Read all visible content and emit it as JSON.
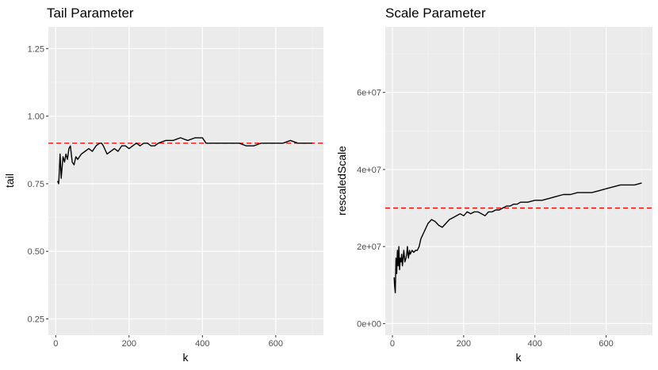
{
  "colors": {
    "panel_bg": "#ebebeb",
    "grid_major": "#ffffff",
    "grid_minor": "#f5f5f5",
    "line": "#000000",
    "ref_line": "#ff0000",
    "tick_text": "#4d4d4d"
  },
  "chart_data": [
    {
      "type": "line",
      "title": "Tail Parameter",
      "xlabel": "k",
      "ylabel": "tail",
      "xlim": [
        -20,
        730
      ],
      "ylim": [
        0.19,
        1.33
      ],
      "x_ticks": [
        0,
        200,
        400,
        600
      ],
      "x_tick_labels": [
        "0",
        "200",
        "400",
        "600"
      ],
      "y_ticks": [
        0.25,
        0.5,
        0.75,
        1.0,
        1.25
      ],
      "y_tick_labels": [
        "0.25",
        "0.50",
        "0.75",
        "1.00",
        "1.25"
      ],
      "reference_line": {
        "y": 0.9,
        "style": "dashed",
        "color": "#ff0000"
      },
      "grid": true,
      "series": [
        {
          "x": [
            5,
            8,
            10,
            12,
            15,
            18,
            20,
            24,
            28,
            32,
            36,
            40,
            45,
            50,
            55,
            60,
            65,
            70,
            80,
            90,
            100,
            110,
            120,
            125,
            130,
            140,
            150,
            160,
            170,
            180,
            190,
            200,
            210,
            220,
            230,
            240,
            250,
            260,
            270,
            280,
            300,
            320,
            340,
            360,
            380,
            400,
            410,
            420,
            440,
            460,
            480,
            500,
            520,
            540,
            560,
            580,
            600,
            620,
            640,
            660,
            680,
            700
          ],
          "values": [
            0.76,
            0.75,
            0.8,
            0.86,
            0.77,
            0.82,
            0.85,
            0.83,
            0.86,
            0.84,
            0.88,
            0.89,
            0.83,
            0.82,
            0.85,
            0.84,
            0.85,
            0.86,
            0.87,
            0.88,
            0.87,
            0.89,
            0.9,
            0.9,
            0.89,
            0.86,
            0.87,
            0.88,
            0.87,
            0.89,
            0.89,
            0.88,
            0.89,
            0.9,
            0.89,
            0.9,
            0.9,
            0.89,
            0.89,
            0.9,
            0.91,
            0.91,
            0.92,
            0.91,
            0.92,
            0.92,
            0.9,
            0.9,
            0.9,
            0.9,
            0.9,
            0.9,
            0.89,
            0.89,
            0.9,
            0.9,
            0.9,
            0.9,
            0.91,
            0.9,
            0.9,
            0.9
          ]
        }
      ]
    },
    {
      "type": "line",
      "title": "Scale Parameter",
      "xlabel": "k",
      "ylabel": "rescaledScale",
      "xlim": [
        -20,
        730
      ],
      "ylim": [
        -3000000,
        77000000
      ],
      "x_ticks": [
        0,
        200,
        400,
        600
      ],
      "x_tick_labels": [
        "0",
        "200",
        "400",
        "600"
      ],
      "y_ticks": [
        0,
        20000000,
        40000000,
        60000000
      ],
      "y_tick_labels": [
        "0e+00",
        "2e+07",
        "4e+07",
        "6e+07"
      ],
      "reference_line": {
        "y": 30000000,
        "style": "dashed",
        "color": "#ff0000"
      },
      "grid": true,
      "series": [
        {
          "x": [
            5,
            6,
            8,
            10,
            12,
            14,
            16,
            18,
            20,
            22,
            24,
            26,
            28,
            30,
            32,
            35,
            38,
            40,
            42,
            45,
            48,
            50,
            55,
            60,
            65,
            70,
            75,
            80,
            90,
            100,
            110,
            120,
            130,
            140,
            150,
            160,
            170,
            180,
            190,
            200,
            210,
            220,
            230,
            240,
            250,
            260,
            270,
            280,
            290,
            300,
            310,
            320,
            330,
            340,
            350,
            360,
            380,
            400,
            420,
            440,
            460,
            480,
            500,
            520,
            540,
            560,
            580,
            600,
            620,
            640,
            660,
            680,
            700
          ],
          "values": [
            12000000,
            10000000,
            8000000,
            17000000,
            13000000,
            19000000,
            15000000,
            20000000,
            14000000,
            17000000,
            16000000,
            18000000,
            15000000,
            17000000,
            19000000,
            16000000,
            17000000,
            18000000,
            20000000,
            17000000,
            19000000,
            18000000,
            19000000,
            18500000,
            19000000,
            19000000,
            20000000,
            22000000,
            24000000,
            26000000,
            27000000,
            26500000,
            25500000,
            25000000,
            26000000,
            27000000,
            27500000,
            28000000,
            28500000,
            28000000,
            29000000,
            28500000,
            29000000,
            29000000,
            28500000,
            28000000,
            29000000,
            29000000,
            29500000,
            29500000,
            30000000,
            30500000,
            30500000,
            31000000,
            31000000,
            31500000,
            31500000,
            32000000,
            32000000,
            32500000,
            33000000,
            33500000,
            33500000,
            34000000,
            34000000,
            34000000,
            34500000,
            35000000,
            35500000,
            36000000,
            36000000,
            36000000,
            36500000
          ]
        }
      ]
    }
  ]
}
